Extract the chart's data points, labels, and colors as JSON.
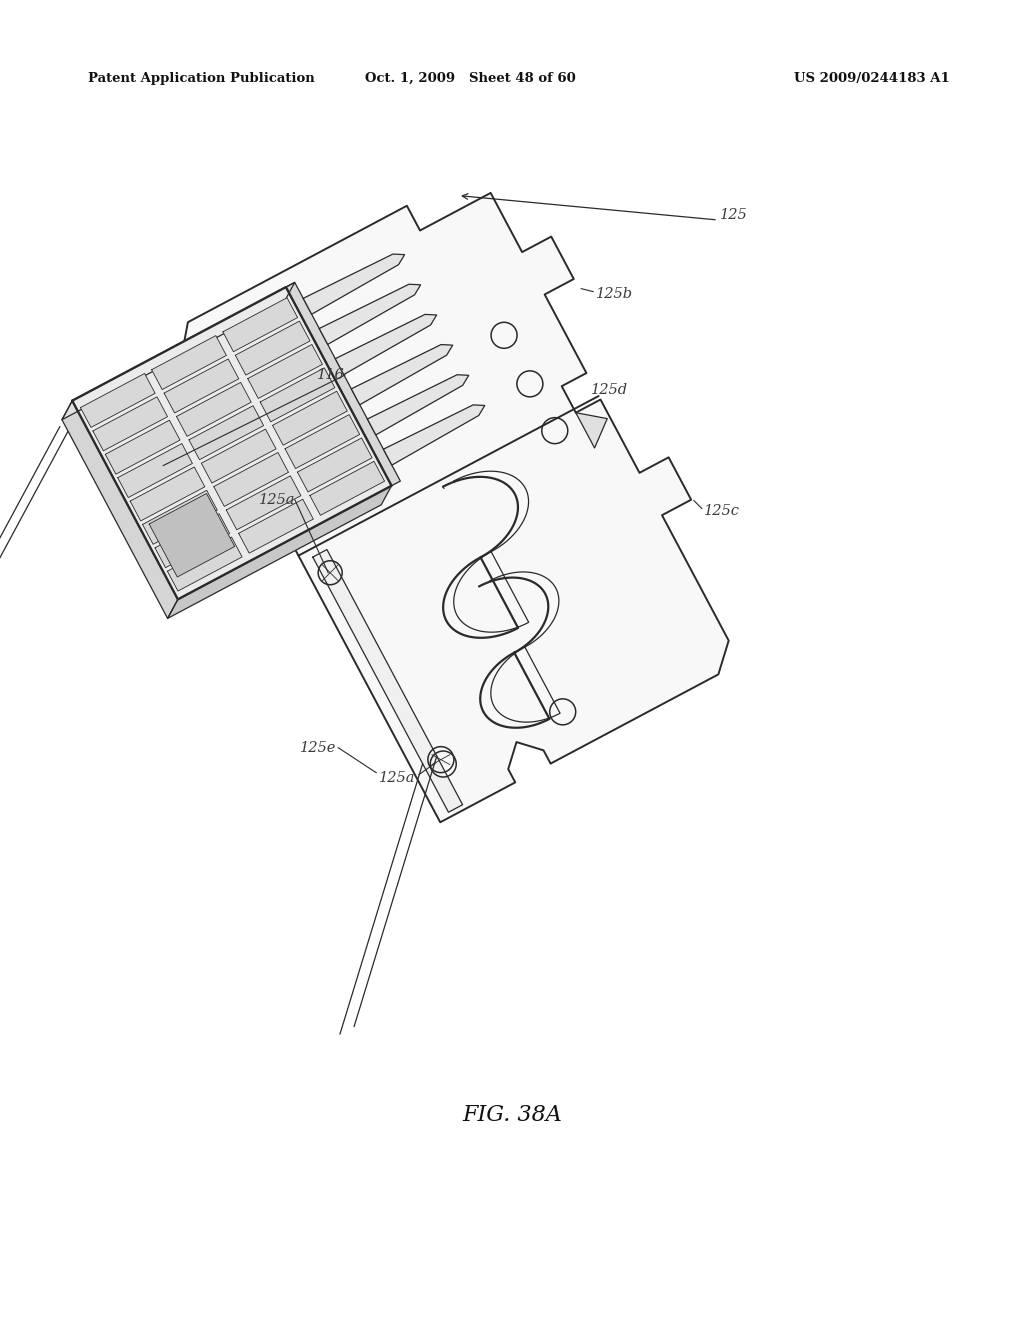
{
  "header_left": "Patent Application Publication",
  "header_center": "Oct. 1, 2009   Sheet 48 of 60",
  "header_right": "US 2009/0244183 A1",
  "figure_label": "FIG. 38A",
  "bg_color": "#ffffff",
  "line_color": "#2a2a2a",
  "label_color": "#3a3a3a",
  "lw_outer": 1.4,
  "lw_inner": 0.9,
  "lw_thin": 0.6,
  "label_fs": 10.5
}
